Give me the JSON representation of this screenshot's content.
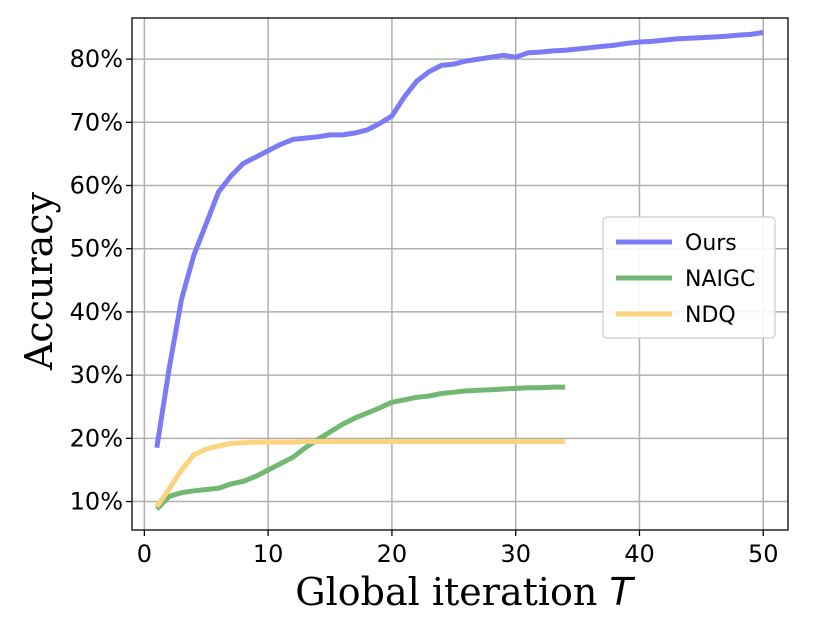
{
  "chart_data": {
    "type": "line",
    "xlabel": "Global iteration",
    "xlabel_var": "T",
    "ylabel": "Accuracy",
    "xlim": [
      -1,
      52
    ],
    "ylim": [
      5.5,
      86.5
    ],
    "x_ticks": [
      0,
      10,
      20,
      30,
      40,
      50
    ],
    "x_tick_labels": [
      "0",
      "10",
      "20",
      "30",
      "40",
      "50"
    ],
    "y_ticks": [
      10,
      20,
      30,
      40,
      50,
      60,
      70,
      80
    ],
    "y_tick_labels": [
      "10%",
      "20%",
      "30%",
      "40%",
      "50%",
      "60%",
      "70%",
      "80%"
    ],
    "grid": true,
    "legend_position": "center-right",
    "series": [
      {
        "name": "Ours",
        "color": "#7b7bf5",
        "x": [
          1,
          2,
          3,
          4,
          5,
          6,
          7,
          8,
          9,
          10,
          11,
          12,
          13,
          14,
          15,
          16,
          17,
          18,
          19,
          20,
          21,
          22,
          23,
          24,
          25,
          26,
          27,
          28,
          29,
          30,
          31,
          32,
          33,
          34,
          35,
          36,
          37,
          38,
          39,
          40,
          41,
          42,
          43,
          44,
          45,
          46,
          47,
          48,
          49,
          50
        ],
        "y": [
          18.5,
          31,
          42,
          49,
          54,
          59,
          61.5,
          63.5,
          64.5,
          65.5,
          66.5,
          67.3,
          67.5,
          67.7,
          68,
          68,
          68.3,
          68.8,
          69.8,
          71,
          74,
          76.5,
          78,
          79,
          79.2,
          79.7,
          80,
          80.3,
          80.6,
          80.3,
          81,
          81.1,
          81.3,
          81.4,
          81.6,
          81.8,
          82,
          82.2,
          82.5,
          82.7,
          82.8,
          83,
          83.2,
          83.3,
          83.4,
          83.5,
          83.6,
          83.8,
          83.9,
          84.2
        ]
      },
      {
        "name": "NAIGC",
        "color": "#72b872",
        "x": [
          1,
          2,
          3,
          4,
          5,
          6,
          7,
          8,
          9,
          10,
          11,
          12,
          13,
          14,
          15,
          16,
          17,
          18,
          19,
          20,
          21,
          22,
          23,
          24,
          25,
          26,
          27,
          28,
          29,
          30,
          31,
          32,
          33,
          34
        ],
        "y": [
          8.8,
          10.8,
          11.4,
          11.7,
          11.9,
          12.1,
          12.8,
          13.2,
          14,
          15,
          16,
          17,
          18.5,
          19.8,
          21,
          22.2,
          23.2,
          24,
          24.8,
          25.7,
          26.1,
          26.5,
          26.7,
          27.1,
          27.3,
          27.5,
          27.6,
          27.7,
          27.8,
          27.9,
          28,
          28,
          28.1,
          28.1
        ]
      },
      {
        "name": "NDQ",
        "color": "#fdd47e",
        "x": [
          1,
          2,
          3,
          4,
          5,
          6,
          7,
          8,
          9,
          10,
          11,
          12,
          13,
          14,
          15,
          16,
          17,
          18,
          19,
          20,
          21,
          22,
          23,
          24,
          25,
          26,
          27,
          28,
          29,
          30,
          31,
          32,
          33,
          34
        ],
        "y": [
          9.2,
          12,
          15,
          17.4,
          18.3,
          18.8,
          19.2,
          19.3,
          19.4,
          19.4,
          19.4,
          19.4,
          19.5,
          19.5,
          19.5,
          19.5,
          19.5,
          19.5,
          19.5,
          19.5,
          19.5,
          19.5,
          19.5,
          19.5,
          19.5,
          19.5,
          19.5,
          19.5,
          19.5,
          19.5,
          19.5,
          19.5,
          19.5,
          19.5
        ]
      }
    ]
  }
}
